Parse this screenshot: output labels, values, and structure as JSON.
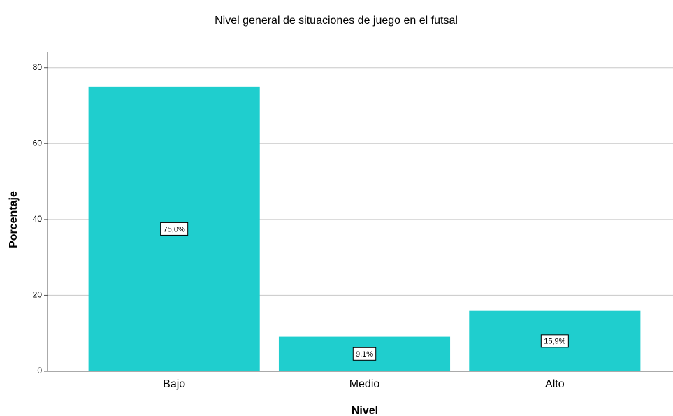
{
  "chart_data": {
    "type": "bar",
    "title": "Nivel general de situaciones de juego en el futsal",
    "x_label": "Nivel",
    "y_label": "Porcentaje",
    "categories": [
      "Bajo",
      "Medio",
      "Alto"
    ],
    "values": [
      75.0,
      9.1,
      15.9
    ],
    "value_labels": [
      "75,0%",
      "9,1%",
      "15,9%"
    ],
    "color": "#1fcece",
    "ylim": [
      0,
      84
    ],
    "yticks": [
      0,
      20,
      40,
      60,
      80
    ],
    "grid": true
  }
}
